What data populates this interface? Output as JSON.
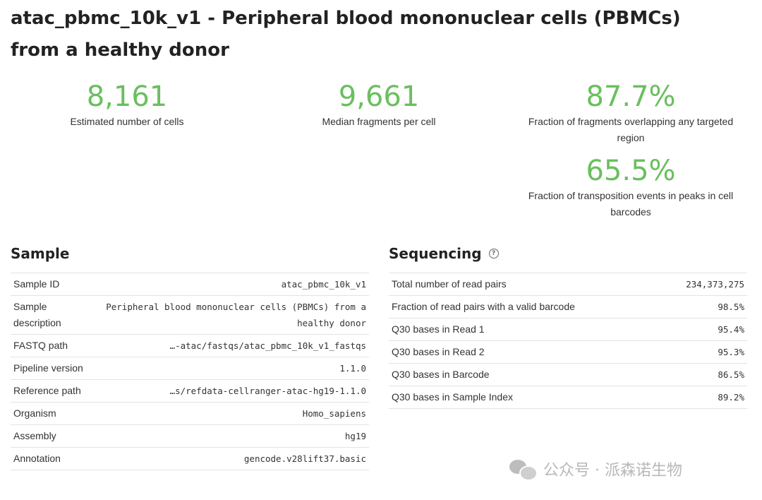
{
  "title": "atac_pbmc_10k_v1 - Peripheral blood mononuclear cells (PBMCs) from a healthy donor",
  "metrics": [
    {
      "value": "8,161",
      "label": "Estimated number of cells"
    },
    {
      "value": "9,661",
      "label": "Median fragments per cell"
    },
    {
      "value": "87.7%",
      "label": "Fraction of fragments overlapping any targeted region"
    },
    {
      "value": "65.5%",
      "label": "Fraction of transposition events in peaks in cell barcodes"
    }
  ],
  "sample": {
    "heading": "Sample",
    "rows": [
      {
        "key": "Sample ID",
        "value": "atac_pbmc_10k_v1"
      },
      {
        "key": "Sample description",
        "value": "Peripheral blood mononuclear cells (PBMCs) from a healthy donor"
      },
      {
        "key": "FASTQ path",
        "value": "…-atac/fastqs/atac_pbmc_10k_v1_fastqs"
      },
      {
        "key": "Pipeline version",
        "value": "1.1.0"
      },
      {
        "key": "Reference path",
        "value": "…s/refdata-cellranger-atac-hg19-1.1.0"
      },
      {
        "key": "Organism",
        "value": "Homo_sapiens"
      },
      {
        "key": "Assembly",
        "value": "hg19"
      },
      {
        "key": "Annotation",
        "value": "gencode.v28lift37.basic"
      }
    ]
  },
  "sequencing": {
    "heading": "Sequencing",
    "help_icon": "question-circle-icon",
    "rows": [
      {
        "key": "Total number of read pairs",
        "value": "234,373,275"
      },
      {
        "key": "Fraction of read pairs with a valid barcode",
        "value": "98.5%"
      },
      {
        "key": "Q30 bases in Read 1",
        "value": "95.4%"
      },
      {
        "key": "Q30 bases in Read 2",
        "value": "95.3%"
      },
      {
        "key": "Q30 bases in Barcode",
        "value": "86.5%"
      },
      {
        "key": "Q30 bases in Sample Index",
        "value": "89.2%"
      }
    ]
  },
  "watermark": {
    "icon": "wechat-icon",
    "text": "公众号 · 派森诺生物"
  },
  "colors": {
    "metric_value": "#6abf5e",
    "row_border": "#e3e3e3"
  }
}
